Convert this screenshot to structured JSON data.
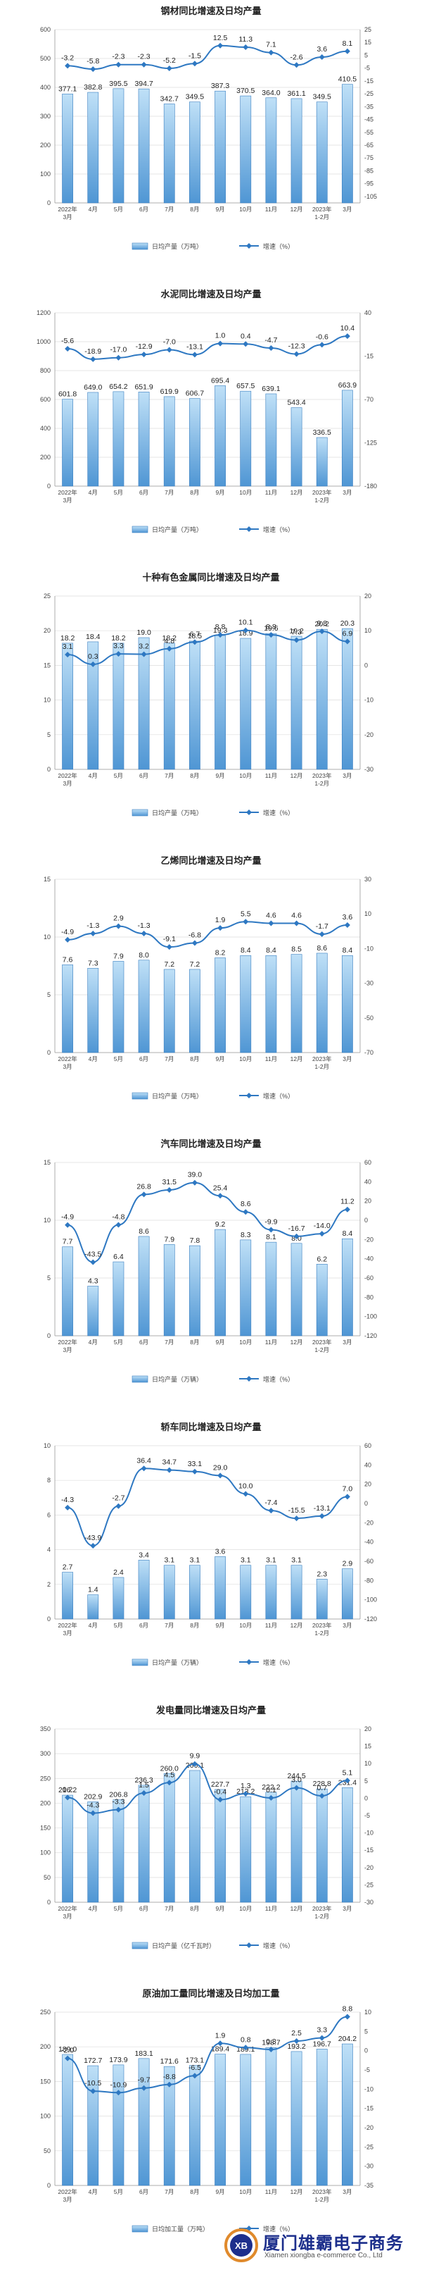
{
  "chart_data": [
    {
      "type": "bar+line",
      "title": "钢材同比增速及日均产量",
      "categories": [
        "2022年3月",
        "4月",
        "5月",
        "6月",
        "7月",
        "8月",
        "9月",
        "10月",
        "11月",
        "12月",
        "2023年1-2月",
        "3月"
      ],
      "bar_series": {
        "name": "日均产量（万吨）",
        "values": [
          377.1,
          382.8,
          395.5,
          394.7,
          342.7,
          349.5,
          387.3,
          370.5,
          364.0,
          361.1,
          349.5,
          410.5
        ]
      },
      "line_series": {
        "name": "增速（%）",
        "values": [
          -3.2,
          -5.8,
          -2.3,
          -2.3,
          -5.2,
          -1.5,
          12.5,
          11.3,
          7.1,
          -2.6,
          3.6,
          8.1
        ]
      },
      "left_axis": {
        "min": 0,
        "max": 600,
        "step": 100
      },
      "right_axis": {
        "min": -110,
        "max": 25,
        "step": 10
      },
      "legend_position": "bottom"
    },
    {
      "type": "bar+line",
      "title": "水泥同比增速及日均产量",
      "categories": [
        "2022年3月",
        "4月",
        "5月",
        "6月",
        "7月",
        "8月",
        "9月",
        "10月",
        "11月",
        "12月",
        "2023年1-2月",
        "3月"
      ],
      "bar_series": {
        "name": "日均产量（万吨）",
        "values": [
          601.8,
          649.0,
          654.2,
          651.9,
          619.9,
          606.7,
          695.4,
          657.5,
          639.1,
          543.4,
          336.5,
          663.9
        ]
      },
      "line_series": {
        "name": "增速（%）",
        "values": [
          -5.6,
          -18.9,
          -17.0,
          -12.9,
          -7.0,
          -13.1,
          1.0,
          0.4,
          -4.7,
          -12.3,
          -0.6,
          10.4
        ]
      },
      "left_axis": {
        "min": 0,
        "max": 1200,
        "step": 200
      },
      "right_axis": {
        "min": -180,
        "max": 40,
        "step": 55
      },
      "legend_position": "bottom"
    },
    {
      "type": "bar+line",
      "title": "十种有色金属同比增速及日均产量",
      "categories": [
        "2022年3月",
        "4月",
        "5月",
        "6月",
        "7月",
        "8月",
        "9月",
        "10月",
        "11月",
        "12月",
        "2023年1-2月",
        "3月"
      ],
      "bar_series": {
        "name": "日均产量（万吨）",
        "values": [
          18.2,
          18.4,
          18.2,
          19.0,
          18.2,
          18.5,
          19.3,
          18.9,
          19.6,
          19.2,
          20.2,
          20.3
        ]
      },
      "line_series": {
        "name": "增速（%）",
        "values": [
          3.1,
          0.3,
          3.3,
          3.2,
          4.8,
          6.7,
          8.8,
          10.1,
          8.8,
          7.3,
          9.8,
          6.9
        ]
      },
      "left_axis": {
        "min": 0,
        "max": 25,
        "step": 5
      },
      "right_axis": {
        "min": -30,
        "max": 20,
        "step": 10
      },
      "legend_position": "bottom"
    },
    {
      "type": "bar+line",
      "title": "乙烯同比增速及日均产量",
      "categories": [
        "2022年3月",
        "4月",
        "5月",
        "6月",
        "7月",
        "8月",
        "9月",
        "10月",
        "11月",
        "12月",
        "2023年1-2月",
        "3月"
      ],
      "bar_series": {
        "name": "日均产量（万吨）",
        "values": [
          7.6,
          7.3,
          7.9,
          8.0,
          7.2,
          7.2,
          8.2,
          8.4,
          8.4,
          8.5,
          8.6,
          8.4
        ]
      },
      "line_series": {
        "name": "增速（%）",
        "values": [
          -4.9,
          -1.3,
          2.9,
          -1.3,
          -9.1,
          -6.8,
          1.9,
          5.5,
          4.6,
          4.6,
          -1.7,
          3.6
        ]
      },
      "left_axis": {
        "min": 0,
        "max": 15,
        "step": 5
      },
      "right_axis": {
        "min": -70,
        "max": 30,
        "step": 20
      },
      "legend_position": "bottom"
    },
    {
      "type": "bar+line",
      "title": "汽车同比增速及日均产量",
      "categories": [
        "2022年3月",
        "4月",
        "5月",
        "6月",
        "7月",
        "8月",
        "9月",
        "10月",
        "11月",
        "12月",
        "2023年1-2月",
        "3月"
      ],
      "bar_series": {
        "name": "日均产量（万辆）",
        "values": [
          7.7,
          4.3,
          6.4,
          8.6,
          7.9,
          7.8,
          9.2,
          8.3,
          8.1,
          8.0,
          6.2,
          8.4
        ]
      },
      "line_series": {
        "name": "增速（%）",
        "values": [
          -4.9,
          -43.5,
          -4.8,
          26.8,
          31.5,
          39.0,
          25.4,
          8.6,
          -9.9,
          -16.7,
          -14.0,
          11.2
        ]
      },
      "left_axis": {
        "min": 0,
        "max": 15,
        "step": 5
      },
      "right_axis": {
        "min": -120,
        "max": 60,
        "step": 20
      },
      "legend_position": "bottom"
    },
    {
      "type": "bar+line",
      "title": "轿车同比增速及日均产量",
      "categories": [
        "2022年3月",
        "4月",
        "5月",
        "6月",
        "7月",
        "8月",
        "9月",
        "10月",
        "11月",
        "12月",
        "2023年1-2月",
        "3月"
      ],
      "bar_series": {
        "name": "日均产量（万辆）",
        "values": [
          2.7,
          1.4,
          2.4,
          3.4,
          3.1,
          3.1,
          3.6,
          3.1,
          3.1,
          3.1,
          2.3,
          2.9
        ]
      },
      "line_series": {
        "name": "增速（%）",
        "values": [
          -4.3,
          -43.9,
          -2.7,
          36.4,
          34.7,
          33.1,
          29.0,
          10.0,
          -7.4,
          -15.5,
          -13.1,
          7.0
        ]
      },
      "left_axis": {
        "min": 0,
        "max": 10,
        "step": 2
      },
      "right_axis": {
        "min": -120,
        "max": 60,
        "step": 20
      },
      "legend_position": "bottom"
    },
    {
      "type": "bar+line",
      "title": "发电量同比增速及日均产量",
      "categories": [
        "2022年3月",
        "4月",
        "5月",
        "6月",
        "7月",
        "8月",
        "9月",
        "10月",
        "11月",
        "12月",
        "2023年1-2月",
        "3月"
      ],
      "bar_series": {
        "name": "日均产量（亿千瓦时）",
        "values": [
          216.2,
          202.9,
          206.8,
          236.3,
          260.0,
          266.1,
          227.7,
          213.2,
          222.2,
          244.5,
          228.8,
          231.4
        ]
      },
      "line_series": {
        "name": "增速（%）",
        "values": [
          0.2,
          -4.3,
          -3.3,
          1.5,
          4.5,
          9.9,
          -0.4,
          1.3,
          0.1,
          3.0,
          0.7,
          5.1
        ]
      },
      "left_axis": {
        "min": 0,
        "max": 350,
        "step": 50
      },
      "right_axis": {
        "min": -30,
        "max": 20,
        "step": 5
      },
      "legend_position": "bottom"
    },
    {
      "type": "bar+line",
      "title": "原油加工量同比增速及日均加工量",
      "categories": [
        "2022年3月",
        "4月",
        "5月",
        "6月",
        "7月",
        "8月",
        "9月",
        "10月",
        "11月",
        "12月",
        "2023年1-2月",
        "3月"
      ],
      "bar_series": {
        "name": "日均加工量（万吨）",
        "values": [
          189.0,
          172.7,
          173.9,
          183.1,
          171.6,
          173.1,
          189.4,
          189.1,
          198.7,
          193.2,
          196.7,
          204.2
        ]
      },
      "line_series": {
        "name": "增速（%）",
        "values": [
          -2.0,
          -10.5,
          -10.9,
          -9.7,
          -8.8,
          -6.5,
          1.9,
          0.8,
          0.3,
          2.5,
          3.3,
          8.8
        ]
      },
      "left_axis": {
        "min": 0,
        "max": 250,
        "step": 50
      },
      "right_axis": {
        "min": -35,
        "max": 10,
        "step": 5
      },
      "legend_position": "bottom"
    }
  ],
  "watermark": {
    "logo_text": "XB",
    "company_cn": "厦门雄霸电子商务",
    "company_en": "Xiamen xiongba e-commerce Co., Ltd",
    "color": "#1d2f8c",
    "logo_ring_color": "#e08a2c"
  },
  "colors": {
    "bar_top": "#bfe0f7",
    "bar_bottom": "#4f96d4",
    "bar_stroke": "#3b7fc0",
    "line": "#2e78c2",
    "gridline": "#dddddd",
    "axis": "#999999"
  }
}
